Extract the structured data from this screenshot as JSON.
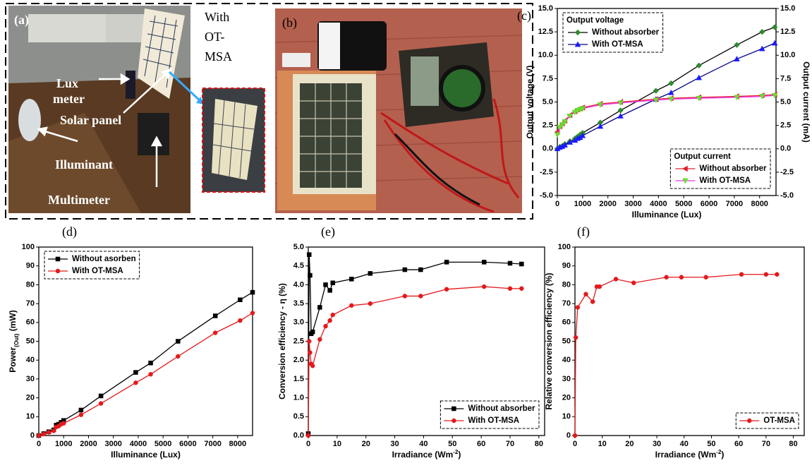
{
  "photos": [
    {
      "label": "(a)",
      "callouts": [
        [
          "Lux",
          "meter"
        ],
        [
          "Solar panel"
        ],
        [
          "Illuminant"
        ],
        [
          "Multimeter"
        ]
      ],
      "caption": [
        "With",
        "OT-",
        "MSA"
      ]
    },
    {
      "label": "(b)"
    }
  ],
  "chart_data": [
    {
      "type": "line",
      "label": "(c)",
      "xlabel": "Illuminance (Lux)",
      "ylabel": "Output voltage (V)",
      "y2label": "Output current (mA)",
      "x": [
        0,
        100,
        200,
        300,
        500,
        700,
        800,
        900,
        1000,
        1700,
        2500,
        3900,
        4500,
        5600,
        7100,
        8100,
        8600
      ],
      "xlim": [
        0,
        8650
      ],
      "xticks": [
        0,
        1000,
        2000,
        3000,
        4000,
        5000,
        6000,
        7000,
        8000
      ],
      "ylim": [
        -5,
        15
      ],
      "yticks": [
        {
          "value": -5,
          "label": "-5.0"
        },
        -2.5,
        {
          "value": 0,
          "label": "0.0"
        },
        2.5,
        {
          "value": 5,
          "label": "5.0"
        },
        7.5,
        {
          "value": 10,
          "label": "10.0"
        },
        12.5,
        {
          "value": 15,
          "label": "15.0"
        }
      ],
      "y2lim": [
        -5,
        15
      ],
      "y2ticks": [
        {
          "value": -5,
          "label": "-5.0"
        },
        -2.5,
        {
          "value": 0,
          "label": "0.0"
        },
        2.5,
        {
          "value": 5,
          "label": "5.0"
        },
        7.5,
        {
          "value": 10,
          "label": "10.0"
        },
        12.5,
        {
          "value": 15,
          "label": "15.0"
        }
      ],
      "legend_titles": {
        "top-left": "Output voltage",
        "bottom-right": "Output current"
      },
      "series": [
        {
          "name": "Without absorber",
          "legend": "top-left",
          "marker": "diamond",
          "color": "#2e8b2e",
          "line_color": "#000000",
          "values": [
            0,
            0.2,
            0.3,
            0.5,
            0.8,
            1.1,
            1.3,
            1.5,
            1.7,
            2.8,
            4.1,
            6.2,
            7.0,
            8.9,
            11.1,
            12.5,
            13.0
          ]
        },
        {
          "name": "With OT-MSA",
          "legend": "top-left",
          "marker": "triangle-up",
          "color": "#1a1aff",
          "line_color": "#00008b",
          "values": [
            0,
            0.15,
            0.25,
            0.4,
            0.7,
            0.9,
            1.1,
            1.2,
            1.4,
            2.4,
            3.5,
            5.3,
            6.0,
            7.6,
            9.6,
            10.7,
            11.3
          ]
        },
        {
          "name": "Without absorber",
          "legend": "bottom-right",
          "axis": "y2",
          "marker": "triangle-left",
          "color": "#e0202a",
          "line_color": "#e0202a",
          "values": [
            1.8,
            2.4,
            2.7,
            3.0,
            3.6,
            4.0,
            4.2,
            4.3,
            4.4,
            4.8,
            5.0,
            5.3,
            5.4,
            5.5,
            5.6,
            5.7,
            5.8
          ]
        },
        {
          "name": "With OT-MSA",
          "legend": "bottom-right",
          "axis": "y2",
          "marker": "triangle-down",
          "color": "#66dd33",
          "line_color": "#ee33ee",
          "values": [
            1.5,
            2.3,
            2.6,
            2.9,
            3.5,
            3.9,
            4.1,
            4.2,
            4.3,
            4.7,
            4.9,
            5.2,
            5.3,
            5.4,
            5.5,
            5.6,
            5.7
          ]
        }
      ]
    },
    {
      "type": "line",
      "label": "(d)",
      "xlabel": "Illuminance (Lux)",
      "ylabel": "Power",
      "ylabel_sub": "(Out)",
      "ylabel_end": " (mW)",
      "legend": "top-left",
      "x": [
        0,
        200,
        400,
        600,
        700,
        800,
        900,
        1000,
        1700,
        2500,
        3900,
        4500,
        5600,
        7100,
        8100,
        8600
      ],
      "xlim": [
        0,
        8600
      ],
      "xticks": [
        0,
        1000,
        2000,
        3000,
        4000,
        5000,
        6000,
        7000,
        8000
      ],
      "ylim": [
        0,
        100
      ],
      "yticks": [
        0,
        10,
        20,
        30,
        40,
        50,
        60,
        70,
        80,
        90,
        100
      ],
      "series": [
        {
          "name": "Without asorben",
          "marker": "square",
          "color": "#000000",
          "line_color": "#000000",
          "values": [
            0,
            1,
            2,
            3,
            5.5,
            6,
            7,
            8,
            13.5,
            21,
            33.5,
            38.5,
            50,
            63.5,
            72,
            76
          ]
        },
        {
          "name": "With OT-MSA",
          "marker": "circle",
          "color": "#e31a1c",
          "line_color": "#e31a1c",
          "values": [
            0,
            0.8,
            1.7,
            2.5,
            4.5,
            5,
            6,
            6.5,
            11,
            17,
            28,
            32.5,
            42,
            54.5,
            61,
            65
          ]
        }
      ]
    },
    {
      "type": "line",
      "label": "(e)",
      "xlabel": "Irradiance (Wm",
      "xlabel_sup": "-2",
      "xlabel_end": ")",
      "ylabel": "Conversion efficiency - η (%)",
      "legend": "bottom-right",
      "x": [
        0,
        0.3,
        0.6,
        1,
        1.5,
        4,
        6,
        7.5,
        8.5,
        15,
        21.5,
        33.5,
        39,
        48,
        61,
        70,
        74
      ],
      "xlim": [
        0,
        82
      ],
      "xticks": [
        0,
        10,
        20,
        30,
        40,
        50,
        60,
        70,
        80
      ],
      "ylim": [
        0,
        5
      ],
      "yticks": [
        {
          "value": 0,
          "label": "0.0"
        },
        0.5,
        {
          "value": 1,
          "label": "1.0"
        },
        1.5,
        {
          "value": 2,
          "label": "2.0"
        },
        2.5,
        {
          "value": 3,
          "label": "3.0"
        },
        3.5,
        {
          "value": 4,
          "label": "4.0"
        },
        4.5,
        {
          "value": 5,
          "label": "5.0"
        }
      ],
      "series": [
        {
          "name": "Without absorber",
          "marker": "square",
          "color": "#000000",
          "line_color": "#000000",
          "values": [
            0.05,
            4.8,
            4.25,
            2.7,
            2.75,
            3.4,
            4.0,
            3.85,
            4.05,
            4.15,
            4.3,
            4.4,
            4.4,
            4.6,
            4.6,
            4.57,
            4.55
          ]
        },
        {
          "name": "With OT-MSA",
          "marker": "circle",
          "color": "#e31a1c",
          "line_color": "#e31a1c",
          "values": [
            0,
            2.5,
            2.2,
            1.9,
            1.85,
            2.55,
            2.9,
            3.05,
            3.2,
            3.45,
            3.5,
            3.7,
            3.7,
            3.88,
            3.95,
            3.9,
            3.9
          ]
        }
      ]
    },
    {
      "type": "line",
      "label": "(f)",
      "xlabel": "Irradiance (Wm",
      "xlabel_sup": "-2",
      "xlabel_end": ")",
      "ylabel": "Relative conversion efficiency (%)",
      "legend": "bottom-right",
      "x": [
        0,
        0.3,
        1,
        4,
        6.5,
        8,
        9,
        15,
        21.5,
        33.5,
        39,
        48,
        61,
        70,
        74
      ],
      "xlim": [
        0,
        84
      ],
      "xticks": [
        0,
        10,
        20,
        30,
        40,
        50,
        60,
        70,
        80
      ],
      "ylim": [
        0,
        100
      ],
      "yticks": [
        0,
        10,
        20,
        30,
        40,
        50,
        60,
        70,
        80,
        90,
        100
      ],
      "series": [
        {
          "name": "OT-MSA",
          "marker": "circle",
          "color": "#e31a1c",
          "line_color": "#e31a1c",
          "values": [
            0,
            52,
            68,
            75,
            71,
            79,
            79,
            83,
            81,
            84,
            84,
            84,
            85.5,
            85.5,
            85.5
          ]
        }
      ]
    }
  ]
}
